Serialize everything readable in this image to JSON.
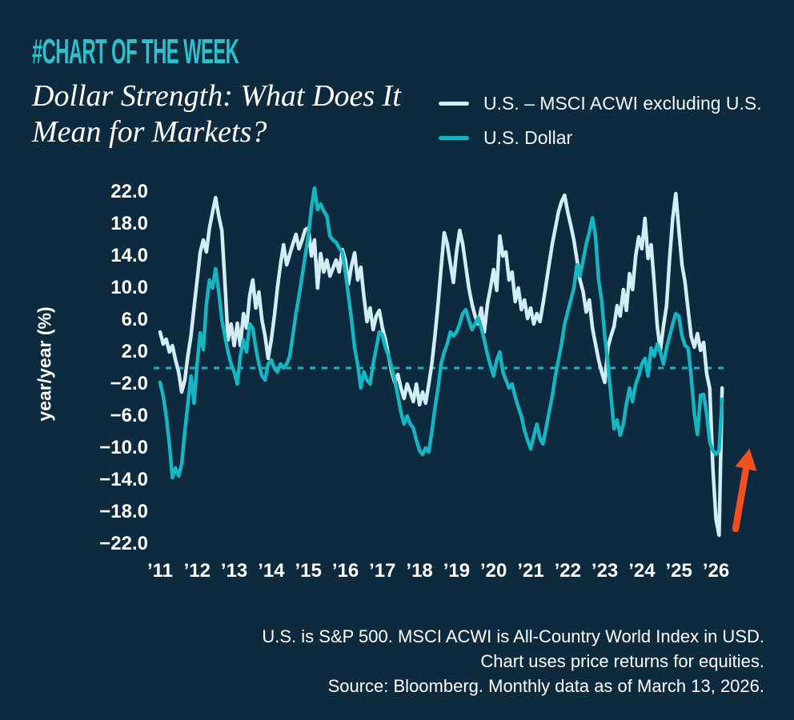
{
  "page": {
    "background": "#0d2a3e",
    "text_color": "#ffffff"
  },
  "header": {
    "kicker": "#CHART OF THE WEEK",
    "kicker_color": "#2cc1cd",
    "title_line1": "Dollar Strength: What Does It",
    "title_line2": "Mean for Markets?"
  },
  "legend": {
    "items": [
      {
        "label": "U.S. – MSCI ACWI excluding U.S.",
        "color": "#d3edf5"
      },
      {
        "label": "U.S. Dollar",
        "color": "#16b5c2"
      }
    ]
  },
  "chart_data": {
    "type": "line",
    "ylabel": "year/year (%)",
    "ylim": [
      -24,
      24
    ],
    "grid": false,
    "legend_position": "top-right",
    "x_start": "2011-01",
    "x_end": "2026-03",
    "x_step_months": 1,
    "x_ticks": [
      "’11",
      "’12",
      "’13",
      "’14",
      "’15",
      "’16",
      "’17",
      "’18",
      "’19",
      "’20",
      "’21",
      "’22",
      "’23",
      "’24",
      "’25",
      "’26"
    ],
    "y_ticks": [
      {
        "value": 22,
        "label": "22.0"
      },
      {
        "value": 18,
        "label": "18.0"
      },
      {
        "value": 14,
        "label": "14.0"
      },
      {
        "value": 10,
        "label": "10.0"
      },
      {
        "value": 6,
        "label": "6.0"
      },
      {
        "value": 2,
        "label": "2.0"
      },
      {
        "value": -2,
        "label": "−2.0"
      },
      {
        "value": -6,
        "label": "−6.0"
      },
      {
        "value": -10,
        "label": "−10.0"
      },
      {
        "value": -14,
        "label": "−14.0"
      },
      {
        "value": -18,
        "label": "−18.0"
      },
      {
        "value": -22,
        "label": "−22.0"
      }
    ],
    "zero_line": {
      "style": "dashed",
      "color": "#16b5c2",
      "value": 0
    },
    "annotation_arrow": {
      "direction": "up",
      "color": "#f0511f",
      "near": "2026 trough"
    },
    "series": [
      {
        "name": "U.S. – MSCI ACWI excluding U.S.",
        "color": "#d3edf5",
        "values": [
          4.5,
          3.0,
          3.6,
          2.0,
          2.8,
          1.0,
          -0.5,
          -3.0,
          -1.5,
          1.5,
          4.0,
          7.5,
          11.0,
          14.5,
          16.0,
          14.5,
          17.5,
          19.5,
          21.3,
          19.0,
          17.2,
          10.7,
          3.5,
          5.5,
          2.8,
          5.6,
          2.8,
          6.8,
          5.0,
          9.0,
          11.0,
          7.5,
          9.5,
          6.0,
          4.0,
          1.2,
          3.5,
          6.5,
          10.0,
          13.0,
          15.4,
          12.9,
          14.2,
          15.5,
          16.7,
          14.9,
          16.0,
          17.3,
          17.5,
          14.0,
          16.0,
          10.0,
          14.3,
          12.0,
          13.5,
          11.5,
          12.5,
          13.5,
          12.0,
          14.8,
          13.5,
          10.5,
          12.8,
          14.4,
          11.0,
          12.6,
          9.0,
          5.8,
          7.5,
          4.8,
          6.5,
          7.2,
          5.0,
          3.5,
          1.5,
          -0.5,
          -1.8,
          -0.8,
          -2.5,
          -3.8,
          -2.0,
          -3.0,
          -4.2,
          -2.0,
          -4.6,
          -3.0,
          -4.4,
          -2.0,
          0.5,
          4.0,
          8.0,
          12.5,
          16.9,
          15.5,
          13.0,
          10.7,
          14.5,
          17.2,
          15.5,
          12.7,
          10.0,
          8.0,
          6.5,
          5.5,
          7.5,
          4.5,
          8.0,
          10.0,
          12.3,
          9.7,
          16.5,
          14.0,
          14.5,
          11.0,
          12.0,
          8.3,
          10.0,
          7.3,
          8.5,
          6.2,
          7.5,
          5.5,
          6.8,
          5.8,
          8.0,
          10.5,
          13.0,
          15.5,
          17.5,
          19.5,
          20.8,
          21.6,
          19.5,
          17.8,
          16.0,
          13.5,
          11.0,
          9.5,
          7.0,
          8.5,
          5.0,
          3.0,
          1.0,
          -0.5,
          -1.8,
          2.6,
          4.0,
          5.2,
          7.8,
          6.5,
          9.8,
          7.2,
          11.8,
          9.8,
          14.0,
          16.4,
          14.9,
          18.7,
          13.7,
          15.4,
          10.7,
          5.2,
          2.2,
          5.2,
          7.8,
          13.7,
          18.7,
          21.8,
          17.2,
          12.9,
          10.7,
          7.2,
          3.9,
          2.6,
          4.3,
          2.2,
          3.2,
          -0.7,
          -2.6,
          -12.4,
          -18.9,
          -20.9,
          -2.5
        ]
      },
      {
        "name": "U.S. Dollar",
        "color": "#16b5c2",
        "values": [
          -1.8,
          -3.5,
          -6.0,
          -9.5,
          -13.7,
          -12.5,
          -13.5,
          -12.0,
          -8.0,
          -4.5,
          -1.0,
          -4.4,
          0.5,
          4.4,
          2.3,
          8.0,
          11.0,
          10.0,
          12.4,
          9.5,
          6.0,
          4.0,
          2.0,
          0.5,
          -0.5,
          -2.0,
          1.5,
          3.5,
          2.0,
          5.5,
          5.0,
          2.5,
          0.5,
          -1.0,
          -1.5,
          0.5,
          1.0,
          0.0,
          -0.5,
          0.5,
          0.0,
          0.5,
          1.5,
          4.1,
          6.8,
          9.0,
          11.5,
          14.0,
          16.5,
          20.0,
          22.5,
          19.8,
          20.5,
          19.6,
          19.0,
          16.5,
          16.0,
          15.7,
          15.0,
          14.5,
          12.0,
          9.0,
          6.0,
          2.5,
          0.4,
          -2.5,
          -0.5,
          -1.5,
          -2.0,
          0.5,
          2.5,
          4.5,
          4.1,
          2.5,
          1.5,
          0.0,
          -1.5,
          -3.5,
          -5.5,
          -7.0,
          -6.0,
          -7.0,
          -7.5,
          -9.0,
          -10.3,
          -10.8,
          -10.0,
          -10.5,
          -8.0,
          -5.0,
          -2.5,
          0.5,
          2.0,
          3.0,
          4.5,
          4.0,
          4.5,
          5.5,
          6.8,
          7.3,
          6.0,
          4.8,
          5.5,
          6.3,
          5.0,
          3.5,
          1.7,
          0.3,
          -1.0,
          1.0,
          2.0,
          -0.5,
          -1.5,
          -2.5,
          -2.0,
          -3.6,
          -4.9,
          -6.0,
          -7.8,
          -9.0,
          -10.1,
          -8.5,
          -7.0,
          -8.8,
          -9.5,
          -7.5,
          -5.5,
          -3.5,
          -1.0,
          1.0,
          3.0,
          5.5,
          7.0,
          8.5,
          10.0,
          12.9,
          11.5,
          13.5,
          15.5,
          17.0,
          18.8,
          16.5,
          11.0,
          8.5,
          4.0,
          0.5,
          -3.5,
          -7.6,
          -6.5,
          -8.4,
          -7.0,
          -4.5,
          -2.5,
          -4.2,
          -2.0,
          -1.0,
          0.5,
          1.2,
          -1.0,
          2.5,
          1.5,
          3.0,
          2.0,
          0.5,
          2.5,
          4.0,
          5.5,
          6.8,
          6.5,
          4.0,
          2.8,
          2.5,
          -1.1,
          -5.7,
          -8.3,
          -3.4,
          -3.3,
          -5.7,
          -9.3,
          -10.3,
          -10.8,
          -10.3,
          -3.9
        ]
      }
    ]
  },
  "footer": {
    "lines": [
      "U.S. is S&P 500. MSCI ACWI is All-Country World Index in USD.",
      "Chart uses price returns for equities.",
      "Source: Bloomberg. Monthly data as of March 13, 2026."
    ]
  }
}
